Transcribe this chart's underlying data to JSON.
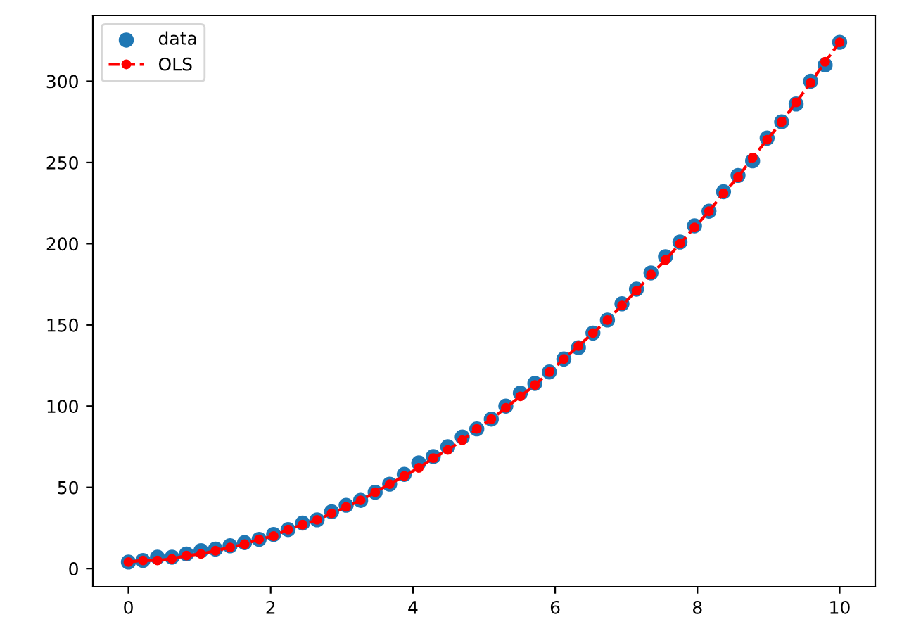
{
  "chart_data": {
    "type": "line",
    "x": [
      0,
      0.204,
      0.408,
      0.612,
      0.816,
      1.02,
      1.224,
      1.429,
      1.633,
      1.837,
      2.041,
      2.245,
      2.449,
      2.653,
      2.857,
      3.061,
      3.265,
      3.469,
      3.673,
      3.878,
      4.082,
      4.286,
      4.49,
      4.694,
      4.898,
      5.102,
      5.306,
      5.51,
      5.714,
      5.918,
      6.122,
      6.327,
      6.531,
      6.735,
      6.939,
      7.143,
      7.347,
      7.551,
      7.755,
      7.959,
      8.163,
      8.367,
      8.571,
      8.776,
      8.98,
      9.184,
      9.388,
      9.592,
      9.796,
      10
    ],
    "series": [
      {
        "name": "data",
        "type": "scatter",
        "color": "#1f77b4",
        "marker": "circle",
        "values": [
          4,
          5,
          7,
          7,
          9,
          11,
          12,
          14,
          16,
          18,
          21,
          24,
          28,
          30,
          35,
          39,
          42,
          47,
          52,
          58,
          65,
          69,
          75,
          81,
          86,
          92,
          100,
          108,
          114,
          121,
          129,
          136,
          145,
          153,
          163,
          172,
          182,
          192,
          201,
          211,
          220,
          232,
          242,
          251,
          265,
          275,
          286,
          300,
          310,
          324
        ]
      },
      {
        "name": "OLS",
        "color": "#ff0000",
        "marker": "circle",
        "line_style": "dashed",
        "values": [
          4,
          5,
          5,
          6,
          8,
          9,
          11,
          13,
          15,
          18,
          20,
          24,
          27,
          30,
          34,
          38,
          42,
          47,
          52,
          57,
          62,
          68,
          73,
          79,
          86,
          92,
          99,
          106,
          113,
          121,
          129,
          137,
          145,
          153,
          162,
          171,
          181,
          190,
          200,
          210,
          220,
          231,
          241,
          253,
          264,
          275,
          287,
          299,
          312,
          324
        ]
      }
    ],
    "xlim": [
      -0.5,
      10.5
    ],
    "ylim": [
      -11.2,
      340.5
    ],
    "xticks": [
      0,
      2,
      4,
      6,
      8,
      10
    ],
    "yticks": [
      0,
      50,
      100,
      150,
      200,
      250,
      300
    ],
    "grid": false,
    "legend": "top left"
  }
}
